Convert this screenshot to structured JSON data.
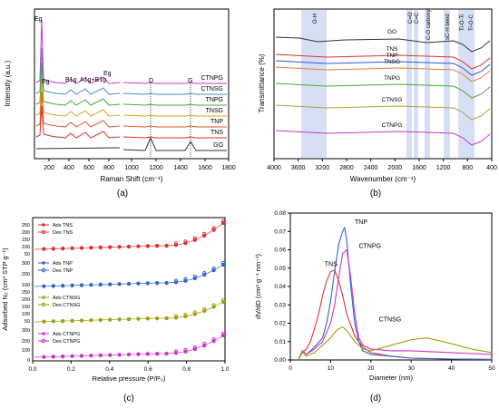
{
  "panels": {
    "a": {
      "caption": "(a)",
      "type": "line",
      "ylabel": "Intensity (a.u.)",
      "xlabel": "Raman Shift (cm⁻¹)",
      "xlim": [
        0,
        1800
      ],
      "xticks": [
        "200",
        "400",
        "600",
        "800",
        "1000",
        "1200",
        "1400",
        "1600",
        "1800"
      ],
      "peak_labels": [
        "Eg",
        "Eg",
        "B1g",
        "A1g+B1g",
        "Eg",
        "D",
        "G"
      ],
      "series": [
        {
          "name": "CTNPG",
          "color": "#cc33cc"
        },
        {
          "name": "CTNSG",
          "color": "#4d8ec9"
        },
        {
          "name": "TNPG",
          "color": "#49a83c"
        },
        {
          "name": "TNSG",
          "color": "#d9a620"
        },
        {
          "name": "TNP",
          "color": "#e05a2a"
        },
        {
          "name": "TNS",
          "color": "#e03030"
        },
        {
          "name": "GO",
          "color": "#333333"
        }
      ]
    },
    "b": {
      "caption": "(b)",
      "type": "line",
      "ylabel": "Transmittance (%)",
      "xlabel": "Wavenumber (cm⁻¹)",
      "xlim": [
        4000,
        400
      ],
      "xticks": [
        "4000",
        "3600",
        "3200",
        "2800",
        "2400",
        "2000",
        "1600",
        "1200",
        "800",
        "400"
      ],
      "bands": [
        "O-H",
        "C=O",
        "C=C",
        "C-O carboxyl",
        "sC-H bend",
        "Ti-O-Ti",
        "Ti-O-C"
      ],
      "series": [
        {
          "name": "GO",
          "color": "#333333"
        },
        {
          "name": "TNS",
          "color": "#e03030"
        },
        {
          "name": "TNP",
          "color": "#3355cc"
        },
        {
          "name": "TNSG",
          "color": "#e08040"
        },
        {
          "name": "TNPG",
          "color": "#49a83c"
        },
        {
          "name": "CTNSG",
          "color": "#b0a040"
        },
        {
          "name": "CTNPG",
          "color": "#cc33cc"
        }
      ]
    },
    "c": {
      "caption": "(c)",
      "type": "scatter",
      "ylabel": "Adsorbed N₂ (cm³ STP g⁻¹)",
      "xlabel": "Relative pressure (P/P₀)",
      "xlim": [
        0.0,
        1.0
      ],
      "xticks": [
        "0.0",
        "0.2",
        "0.4",
        "0.6",
        "0.8",
        "1.0"
      ],
      "legends": [
        {
          "ads": "Ads TNS",
          "des": "Des TNS",
          "color": "#e03030"
        },
        {
          "ads": "Ads TNP",
          "des": "Des TNP",
          "color": "#3366cc"
        },
        {
          "ads": "Ads CTNSG",
          "des": "Des CTNSG",
          "color": "#a0a010"
        },
        {
          "ads": "Ads CTNPG",
          "des": "Des CTNPG",
          "color": "#cc33cc"
        }
      ],
      "scale_labels": [
        "250",
        "200",
        "150",
        "100",
        "50",
        "300",
        "200",
        "100",
        "250",
        "200",
        "150",
        "100",
        "50",
        "300",
        "200",
        "100",
        "0"
      ]
    },
    "d": {
      "caption": "(d)",
      "type": "line",
      "ylabel": "dV/dD (cm³ g⁻¹ nm⁻¹)",
      "xlabel": "Diameter (nm)",
      "xlim": [
        0,
        50
      ],
      "ylim": [
        0.0,
        0.08
      ],
      "xticks": [
        "0",
        "10",
        "20",
        "30",
        "40",
        "50"
      ],
      "yticks": [
        "0.00",
        "0.01",
        "0.02",
        "0.03",
        "0.04",
        "0.05",
        "0.06",
        "0.07",
        "0.08"
      ],
      "series": [
        {
          "name": "TNS",
          "color": "#e03030",
          "x": [
            2,
            3,
            4,
            5,
            6,
            7,
            8,
            9,
            10,
            11,
            12,
            13,
            14,
            16,
            18,
            20,
            25,
            30,
            40,
            50
          ],
          "y": [
            0.0,
            0.004,
            0.006,
            0.01,
            0.017,
            0.025,
            0.035,
            0.043,
            0.048,
            0.049,
            0.043,
            0.035,
            0.025,
            0.013,
            0.007,
            0.004,
            0.002,
            0.001,
            0.0005,
            0.0003
          ]
        },
        {
          "name": "TNP",
          "color": "#3366cc",
          "x": [
            2,
            3,
            4,
            6,
            8,
            9,
            10,
            11,
            12,
            13,
            13.5,
            14,
            15,
            16,
            17,
            18,
            20,
            25,
            30,
            40,
            50
          ],
          "y": [
            0.0,
            0.005,
            0.003,
            0.007,
            0.012,
            0.02,
            0.032,
            0.048,
            0.063,
            0.07,
            0.072,
            0.065,
            0.04,
            0.02,
            0.01,
            0.005,
            0.003,
            0.002,
            0.001,
            0.0005,
            0.0003
          ]
        },
        {
          "name": "CTNPG",
          "color": "#cc33cc",
          "x": [
            2,
            3,
            4,
            6,
            8,
            10,
            11,
            12,
            13,
            14,
            15,
            16,
            17,
            18,
            20,
            25,
            30,
            40,
            50
          ],
          "y": [
            0.0,
            0.005,
            0.003,
            0.006,
            0.01,
            0.02,
            0.03,
            0.045,
            0.058,
            0.06,
            0.045,
            0.025,
            0.012,
            0.008,
            0.006,
            0.005,
            0.005,
            0.004,
            0.003
          ]
        },
        {
          "name": "CTNSG",
          "color": "#a0a010",
          "x": [
            2,
            3,
            4,
            6,
            8,
            10,
            11,
            12,
            13,
            14,
            16,
            18,
            20,
            25,
            30,
            34,
            38,
            45,
            50
          ],
          "y": [
            0.0,
            0.004,
            0.002,
            0.004,
            0.008,
            0.012,
            0.015,
            0.017,
            0.018,
            0.016,
            0.01,
            0.006,
            0.005,
            0.008,
            0.011,
            0.012,
            0.01,
            0.006,
            0.004
          ]
        }
      ]
    }
  }
}
